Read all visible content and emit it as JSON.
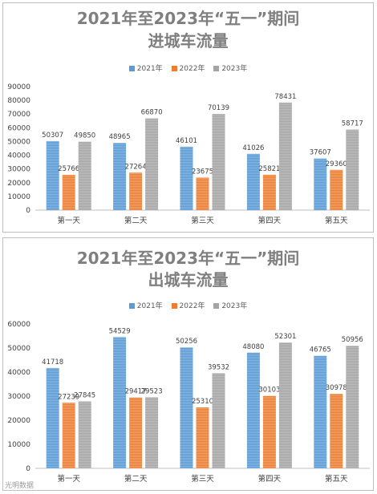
{
  "chart_data": [
    {
      "type": "bar",
      "title_line1": "2021年至2023年“五一”期间",
      "title_line2": "进城车流量",
      "categories": [
        "第一天",
        "第二天",
        "第三天",
        "第四天",
        "第五天"
      ],
      "series": [
        {
          "name": "2021年",
          "color": "#5b9bd5",
          "values": [
            50307,
            48965,
            46101,
            41026,
            37607
          ]
        },
        {
          "name": "2022年",
          "color": "#ed7d31",
          "values": [
            25766,
            27264,
            23675,
            25821,
            29360
          ]
        },
        {
          "name": "2023年",
          "color": "#a5a5a5",
          "values": [
            49850,
            66870,
            70139,
            78431,
            58717
          ]
        }
      ],
      "ylim": [
        0,
        90000
      ],
      "ytick_step": 10000,
      "yticks": [
        "0",
        "10000",
        "20000",
        "30000",
        "40000",
        "50000",
        "60000",
        "70000",
        "80000",
        "90000"
      ],
      "legend_position": "top",
      "grid": false
    },
    {
      "type": "bar",
      "title_line1": "2021年至2023年“五一”期间",
      "title_line2": "出城车流量",
      "categories": [
        "第一天",
        "第二天",
        "第三天",
        "第四天",
        "第五天"
      ],
      "series": [
        {
          "name": "2021年",
          "color": "#5b9bd5",
          "values": [
            41718,
            54529,
            50256,
            48080,
            46765
          ]
        },
        {
          "name": "2022年",
          "color": "#ed7d31",
          "values": [
            27239,
            29417,
            25310,
            30103,
            30978
          ]
        },
        {
          "name": "2023年",
          "color": "#a5a5a5",
          "values": [
            27845,
            29523,
            39532,
            52301,
            50956
          ]
        }
      ],
      "ylim": [
        0,
        60000
      ],
      "ytick_step": 10000,
      "yticks": [
        "0",
        "10000",
        "20000",
        "30000",
        "40000",
        "50000",
        "60000"
      ],
      "legend_position": "top",
      "grid": false
    }
  ],
  "watermark": "光明数据"
}
